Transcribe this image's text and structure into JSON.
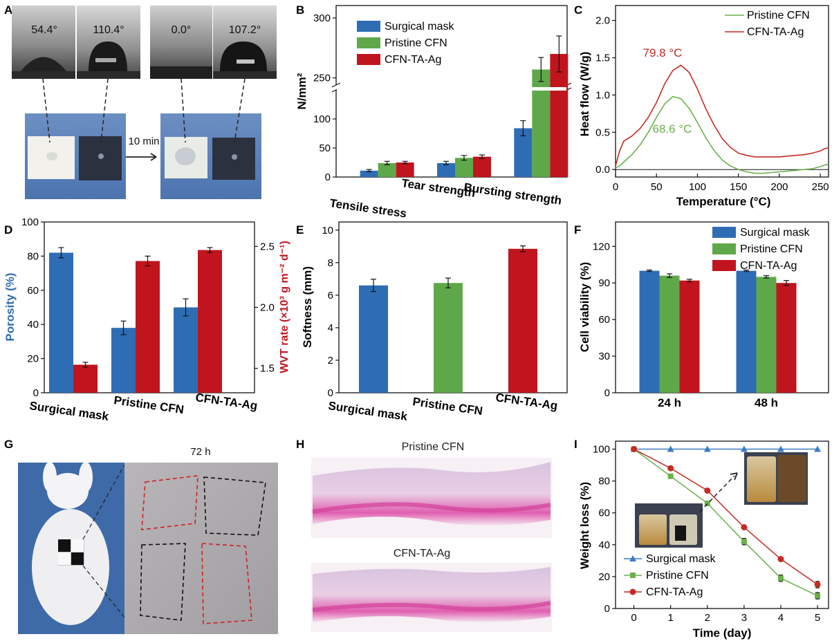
{
  "colors": {
    "blue": "#2e6db4",
    "green": "#5fa84a",
    "red": "#c0151e",
    "green_line": "#6ab04c",
    "red_line": "#c42b22",
    "blue_line": "#3a7cc2",
    "axis": "#000000"
  },
  "panel_letters": [
    "A",
    "B",
    "C",
    "D",
    "E",
    "F",
    "G",
    "H",
    "I"
  ],
  "panel_a": {
    "angles": [
      "54.4°",
      "110.4°",
      "0.0°",
      "107.2°"
    ],
    "arrow_label": "10 min"
  },
  "panel_g": {
    "time_label": "72 h"
  },
  "panel_h": {
    "top_label": "Pristine CFN",
    "bottom_label": "CFN-TA-Ag"
  },
  "chart_data": [
    {
      "id": "B",
      "type": "bar",
      "ylabel": "N/mm²",
      "categories": [
        "Tensile stress",
        "Tear strength",
        "Bursting strength"
      ],
      "series": [
        {
          "name": "Surgical mask",
          "values": [
            11,
            24,
            84
          ],
          "errors": [
            2,
            3,
            13
          ]
        },
        {
          "name": "Pristine CFN",
          "values": [
            24,
            33,
            257
          ],
          "errors": [
            3,
            4,
            10
          ]
        },
        {
          "name": "CFN-TA-Ag",
          "values": [
            25,
            35,
            270
          ],
          "errors": [
            2,
            3,
            15
          ]
        }
      ],
      "y_ticks": [
        "0",
        "50",
        "100",
        "250",
        "300"
      ],
      "y_break": [
        130,
        240
      ],
      "legend": "top-left"
    },
    {
      "id": "C",
      "type": "line",
      "xlabel": "Temperature (°C)",
      "ylabel": "Heat flow (W/g)",
      "xlim": [
        0,
        260
      ],
      "ylim": [
        -0.1,
        2.2
      ],
      "x_ticks": [
        "0",
        "50",
        "100",
        "150",
        "200",
        "250"
      ],
      "y_ticks": [
        "0.0",
        "0.5",
        "1.0",
        "1.5",
        "2.0"
      ],
      "series": [
        {
          "name": "Pristine CFN",
          "x": [
            0,
            5,
            10,
            20,
            30,
            40,
            50,
            60,
            70,
            80,
            90,
            100,
            110,
            120,
            130,
            140,
            150,
            160,
            170,
            180,
            190,
            200,
            210,
            220,
            230,
            240,
            250,
            255,
            260
          ],
          "y": [
            0.02,
            0.05,
            0.1,
            0.2,
            0.33,
            0.5,
            0.7,
            0.88,
            0.98,
            0.95,
            0.82,
            0.63,
            0.43,
            0.26,
            0.13,
            0.05,
            0.0,
            -0.03,
            -0.05,
            -0.05,
            -0.04,
            -0.03,
            -0.02,
            -0.01,
            0.0,
            0.01,
            0.04,
            0.06,
            0.07
          ]
        },
        {
          "name": "CFN-TA-Ag",
          "x": [
            0,
            5,
            10,
            20,
            30,
            40,
            50,
            60,
            70,
            80,
            90,
            100,
            110,
            120,
            130,
            140,
            150,
            160,
            170,
            180,
            190,
            200,
            210,
            220,
            230,
            240,
            250,
            255,
            260
          ],
          "y": [
            0.05,
            0.25,
            0.38,
            0.45,
            0.55,
            0.7,
            0.9,
            1.15,
            1.33,
            1.4,
            1.3,
            1.08,
            0.82,
            0.6,
            0.42,
            0.3,
            0.22,
            0.19,
            0.17,
            0.17,
            0.17,
            0.17,
            0.18,
            0.19,
            0.2,
            0.22,
            0.25,
            0.28,
            0.29
          ]
        }
      ],
      "annotations": [
        "79.8 °C",
        "68.6 °C"
      ],
      "legend": "top-right"
    },
    {
      "id": "D",
      "type": "bar",
      "ylabel": "Porosity (%)",
      "y2label": "WVT rate (×10³ g m⁻² d⁻¹)",
      "categories": [
        "Surgical mask",
        "Pristine CFN",
        "CFN-TA-Ag"
      ],
      "porosity": [
        82,
        38,
        50
      ],
      "porosity_errors": [
        3,
        4,
        5
      ],
      "wvt": [
        1.53,
        2.38,
        2.47
      ],
      "wvt_errors": [
        0.02,
        0.04,
        0.02
      ],
      "ylim": [
        0,
        100
      ],
      "y2lim": [
        1.3,
        2.7
      ],
      "y_ticks": [
        "0",
        "20",
        "40",
        "60",
        "80",
        "100"
      ],
      "y2_ticks": [
        "1.5",
        "2.0",
        "2.5"
      ]
    },
    {
      "id": "E",
      "type": "bar",
      "ylabel": "Softness (mm)",
      "categories": [
        "Surgical mask",
        "Pristine CFN",
        "CFN-TA-Ag"
      ],
      "values": [
        6.6,
        6.75,
        8.85
      ],
      "errors": [
        0.38,
        0.3,
        0.18
      ],
      "ylim": [
        0,
        10.5
      ],
      "y_ticks": [
        "0",
        "2",
        "4",
        "6",
        "8",
        "10"
      ]
    },
    {
      "id": "F",
      "type": "bar",
      "ylabel": "Cell viability (%)",
      "categories": [
        "24 h",
        "48 h"
      ],
      "series": [
        {
          "name": "Surgical mask",
          "values": [
            100,
            100
          ],
          "errors": [
            0.6,
            0.6
          ]
        },
        {
          "name": "Pristine CFN",
          "values": [
            96,
            95
          ],
          "errors": [
            1.5,
            1
          ]
        },
        {
          "name": "CFN-TA-Ag",
          "values": [
            92,
            90
          ],
          "errors": [
            1,
            2
          ]
        }
      ],
      "ylim": [
        0,
        140
      ],
      "y_ticks": [
        "0",
        "30",
        "60",
        "90",
        "120"
      ],
      "legend": "top-right"
    },
    {
      "id": "I",
      "type": "line",
      "xlabel": "Time (day)",
      "ylabel": "Weight loss (%)",
      "xlim": [
        -0.5,
        5.3
      ],
      "ylim": [
        0,
        105
      ],
      "x_ticks": [
        "0",
        "1",
        "2",
        "3",
        "4",
        "5"
      ],
      "y_ticks": [
        "0",
        "20",
        "40",
        "60",
        "80",
        "100"
      ],
      "x": [
        0,
        1,
        2,
        3,
        4,
        5
      ],
      "series": [
        {
          "name": "Surgical mask",
          "values": [
            100,
            100,
            100,
            100,
            100,
            100
          ],
          "errors": [
            0,
            0,
            0,
            0,
            0,
            0
          ]
        },
        {
          "name": "Pristine CFN",
          "values": [
            100,
            83,
            66,
            42,
            19,
            8
          ],
          "errors": [
            0,
            1,
            1,
            2,
            2,
            2
          ]
        },
        {
          "name": "CFN-TA-Ag",
          "values": [
            100,
            88,
            74,
            51,
            31,
            15
          ],
          "errors": [
            0,
            1,
            1,
            1,
            1,
            2
          ]
        }
      ],
      "legend": "bottom-left"
    }
  ]
}
